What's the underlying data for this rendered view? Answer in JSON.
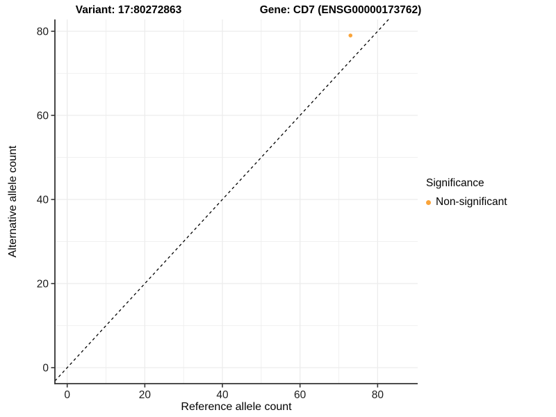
{
  "titles": {
    "left": "Variant: 17:80272863",
    "right": "Gene: CD7 (ENSG00000173762)"
  },
  "chart_data": {
    "type": "scatter",
    "xlabel": "Reference allele count",
    "ylabel": "Alternative allele count",
    "x_ticks": [
      0,
      20,
      40,
      60,
      80
    ],
    "y_ticks": [
      0,
      20,
      40,
      60,
      80
    ],
    "xlim": [
      -3.2,
      84
    ],
    "ylim": [
      -3.8,
      82.8
    ],
    "grid": "light gray lines every 10 units (major every 20, minor every 10)",
    "points": [
      {
        "x": 73,
        "y": 79,
        "series": "Non-significant"
      }
    ],
    "reference_line": {
      "type": "identity",
      "slope": 1,
      "intercept": 0,
      "style": "dashed"
    },
    "legend": {
      "title": "Significance",
      "position": "right",
      "entries": [
        {
          "label": "Non-significant",
          "color": "#FAA43A"
        }
      ]
    },
    "colors": {
      "point": "#FAA43A",
      "gridline": "#ECECEC",
      "axis_line": "#333333",
      "tick_text": "#1A1A1A",
      "reference_line": "#000000",
      "background": "#FFFFFF"
    }
  }
}
